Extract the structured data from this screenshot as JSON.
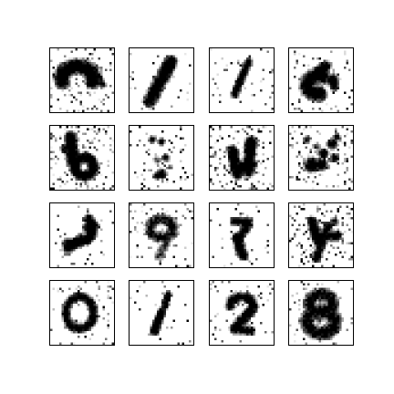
{
  "figure": {
    "grid": {
      "rows": 4,
      "cols": 4
    },
    "colors": {
      "background": "#ffffff",
      "ink": "#000000",
      "frame": "#000000"
    },
    "panels": [
      {
        "id": "r1c1",
        "shape": "sixish",
        "noise": "heavy"
      },
      {
        "id": "r1c2",
        "shape": "one-thick",
        "noise": "light"
      },
      {
        "id": "r1c3",
        "shape": "one-thin",
        "noise": "light"
      },
      {
        "id": "r1c4",
        "shape": "six-blob",
        "noise": "medium"
      },
      {
        "id": "r2c1",
        "shape": "six-split",
        "noise": "heavy"
      },
      {
        "id": "r2c2",
        "shape": "scattered",
        "noise": "medium"
      },
      {
        "id": "r2c3",
        "shape": "four-like",
        "noise": "heavy"
      },
      {
        "id": "r2c4",
        "shape": "scattered-dense",
        "noise": "heavy"
      },
      {
        "id": "r3c1",
        "shape": "three-like",
        "noise": "light"
      },
      {
        "id": "r3c2",
        "shape": "nine-ghost",
        "noise": "medium"
      },
      {
        "id": "r3c3",
        "shape": "seven-like",
        "noise": "light"
      },
      {
        "id": "r3c4",
        "shape": "four-sparse",
        "noise": "heavy"
      },
      {
        "id": "r4c1",
        "shape": "zero-ring",
        "noise": "medium"
      },
      {
        "id": "r4c2",
        "shape": "one-dashed",
        "noise": "light"
      },
      {
        "id": "r4c3",
        "shape": "two-like",
        "noise": "medium"
      },
      {
        "id": "r4c4",
        "shape": "eight-blob",
        "noise": "medium"
      }
    ]
  }
}
